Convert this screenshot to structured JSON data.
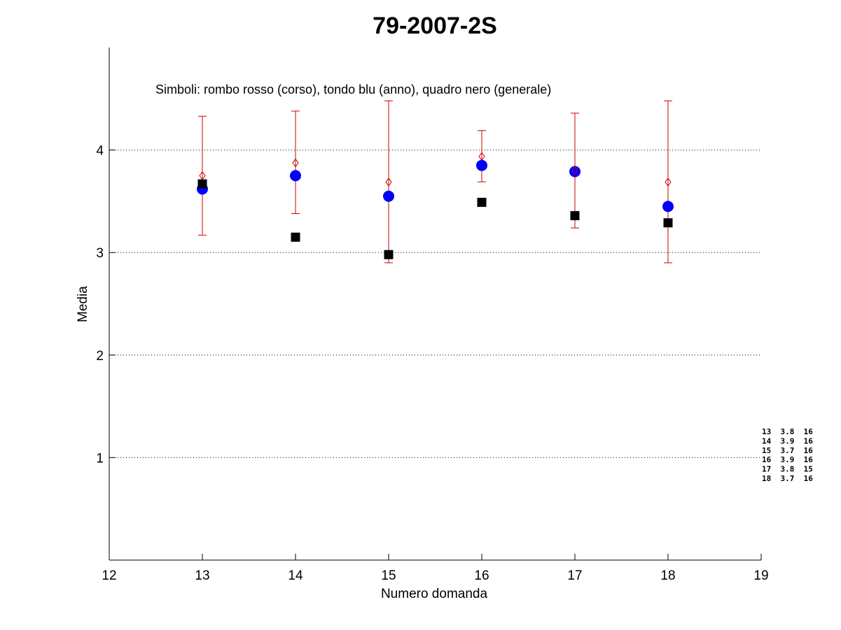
{
  "chart_data": {
    "type": "scatter",
    "title": "79-2007-2S",
    "xlabel": "Numero domanda",
    "ylabel": "Media",
    "xlim": [
      12,
      19
    ],
    "ylim": [
      0,
      5
    ],
    "x_ticks": [
      12,
      13,
      14,
      15,
      16,
      17,
      18,
      19
    ],
    "y_ticks": [
      1,
      2,
      3,
      4
    ],
    "grid": "horizontal-dotted",
    "annotation": "Simboli: rombo rosso (corso), tondo blu (anno), quadro nero (generale)",
    "x": [
      13,
      14,
      15,
      16,
      17,
      18
    ],
    "series": [
      {
        "marker": "diamond",
        "color": "#cc0000",
        "values": [
          3.75,
          3.875,
          3.6875,
          3.9375,
          3.8,
          3.6875
        ],
        "error_low": [
          3.17,
          3.38,
          2.9,
          3.69,
          3.24,
          2.9
        ],
        "error_high": [
          4.33,
          4.38,
          4.48,
          4.19,
          4.36,
          4.48
        ]
      },
      {
        "marker": "circle",
        "color": "#0000ff",
        "values": [
          3.62,
          3.75,
          3.55,
          3.85,
          3.79,
          3.45
        ]
      },
      {
        "marker": "square",
        "color": "#000000",
        "values": [
          3.67,
          3.15,
          2.98,
          3.49,
          3.36,
          3.29
        ]
      }
    ],
    "side_table": [
      "13  3.8  16",
      "14  3.9  16",
      "15  3.7  16",
      "16  3.9  16",
      "17  3.8  15",
      "18  3.7  16"
    ]
  }
}
